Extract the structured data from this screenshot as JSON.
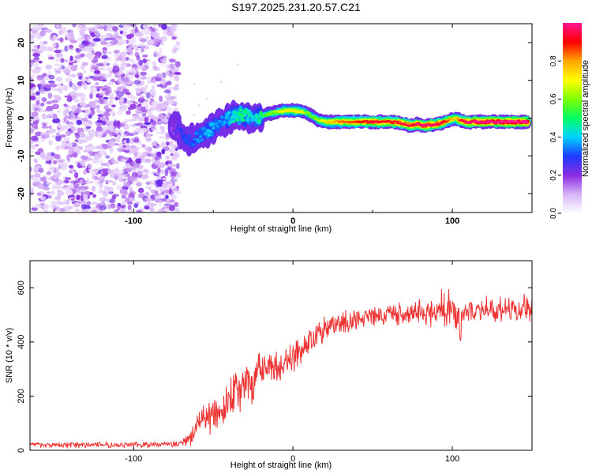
{
  "title": "S197.2025.231.20.57.C21",
  "chart_data": [
    {
      "type": "heatmap",
      "panel": "top",
      "title": "S197.2025.231.20.57.C21",
      "xlabel": "Height of straight line (km)",
      "ylabel": "Frequency (Hz)",
      "xlim": [
        -165,
        150
      ],
      "ylim": [
        -25,
        25
      ],
      "xticks": [
        -100,
        0,
        100
      ],
      "xtick_labels": [
        "-100",
        "0",
        "100"
      ],
      "yticks": [
        -20,
        -10,
        0,
        10,
        20
      ],
      "ytick_labels": [
        "-20",
        "-10",
        "0",
        "10",
        "20"
      ],
      "noise_region_x": [
        -165,
        -72
      ],
      "ridge": {
        "x": [
          -76,
          -72,
          -68,
          -64,
          -60,
          -56,
          -52,
          -48,
          -44,
          -40,
          -36,
          -32,
          -28,
          -24,
          -20,
          -16,
          -12,
          -8,
          -4,
          0,
          4,
          8,
          12,
          16,
          20,
          30,
          40,
          50,
          55,
          60,
          66,
          70,
          74,
          78,
          82,
          86,
          90,
          94,
          98,
          102,
          106,
          110,
          120,
          130,
          140,
          148
        ],
        "freq": [
          -2,
          -3,
          -5,
          -6,
          -5,
          -4,
          -3,
          -2,
          -1,
          0,
          0.5,
          0.8,
          0.5,
          0,
          0.5,
          1,
          1.5,
          1.8,
          2,
          2,
          1.8,
          1.5,
          0.5,
          -0.5,
          -1,
          -1,
          -1,
          -1,
          -1,
          -1,
          -1.2,
          -1.5,
          -2,
          -1.5,
          -2,
          -1.8,
          -1.6,
          -1.2,
          -0.5,
          0,
          -0.8,
          -1,
          -1,
          -1,
          -1,
          -1
        ],
        "amplitude": [
          0.2,
          0.25,
          0.3,
          0.3,
          0.35,
          0.35,
          0.4,
          0.35,
          0.35,
          0.4,
          0.45,
          0.5,
          0.45,
          0.4,
          0.5,
          0.55,
          0.6,
          0.65,
          0.7,
          0.7,
          0.7,
          0.6,
          0.55,
          0.6,
          0.7,
          0.8,
          0.85,
          0.9,
          0.9,
          0.88,
          0.9,
          0.92,
          0.9,
          0.92,
          0.95,
          0.95,
          0.93,
          0.9,
          0.8,
          0.7,
          0.9,
          0.95,
          0.98,
          1.0,
          1.0,
          1.0
        ]
      },
      "colorbar": {
        "label": "Normalized spectral amplitude",
        "range": [
          0,
          1
        ],
        "ticks": [
          0.0,
          0.2,
          0.4,
          0.6,
          0.8
        ],
        "tick_labels": [
          "0.0",
          "0.2",
          "0.4",
          "0.6",
          "0.8"
        ],
        "colormap": [
          "#ffffff",
          "#d8b4f8",
          "#8a2be2",
          "#1e3cff",
          "#00d2ff",
          "#00ff64",
          "#7fff00",
          "#ffff00",
          "#ffa500",
          "#ff0000",
          "#ff1493"
        ]
      }
    },
    {
      "type": "line",
      "panel": "bottom",
      "xlabel": "Height of straight line (km)",
      "ylabel": "SNR (10 * v/v)",
      "xlim": [
        -165,
        150
      ],
      "ylim": [
        0,
        700
      ],
      "xticks": [
        -100,
        0,
        100
      ],
      "xtick_labels": [
        "-100",
        "0",
        "100"
      ],
      "yticks": [
        0,
        200,
        400,
        600
      ],
      "ytick_labels": [
        "0",
        "200",
        "400",
        "600"
      ],
      "color": "#ee3333",
      "series": [
        {
          "name": "SNR",
          "x": [
            -165,
            -150,
            -130,
            -110,
            -90,
            -75,
            -70,
            -65,
            -62,
            -58,
            -54,
            -50,
            -46,
            -42,
            -38,
            -34,
            -30,
            -26,
            -22,
            -18,
            -14,
            -10,
            -6,
            -2,
            2,
            6,
            10,
            14,
            18,
            22,
            26,
            30,
            35,
            40,
            45,
            50,
            55,
            60,
            65,
            70,
            75,
            80,
            85,
            90,
            95,
            100,
            104,
            105,
            106,
            110,
            115,
            120,
            125,
            130,
            135,
            140,
            145,
            150
          ],
          "mean": [
            20,
            20,
            20,
            20,
            20,
            22,
            25,
            40,
            80,
            100,
            110,
            130,
            150,
            170,
            200,
            220,
            240,
            260,
            280,
            290,
            300,
            310,
            330,
            340,
            360,
            380,
            400,
            420,
            440,
            450,
            460,
            470,
            480,
            480,
            490,
            490,
            490,
            500,
            500,
            500,
            510,
            510,
            510,
            510,
            520,
            520,
            500,
            400,
            500,
            520,
            520,
            530,
            520,
            520,
            520,
            520,
            530,
            530
          ],
          "spread": [
            10,
            10,
            10,
            10,
            10,
            10,
            15,
            30,
            50,
            60,
            70,
            70,
            70,
            80,
            80,
            80,
            80,
            80,
            70,
            70,
            70,
            70,
            60,
            60,
            60,
            50,
            50,
            50,
            50,
            50,
            50,
            45,
            45,
            40,
            40,
            40,
            40,
            40,
            40,
            40,
            40,
            45,
            45,
            60,
            80,
            60,
            50,
            10,
            50,
            50,
            45,
            45,
            45,
            45,
            45,
            45,
            50,
            50
          ]
        }
      ]
    }
  ]
}
